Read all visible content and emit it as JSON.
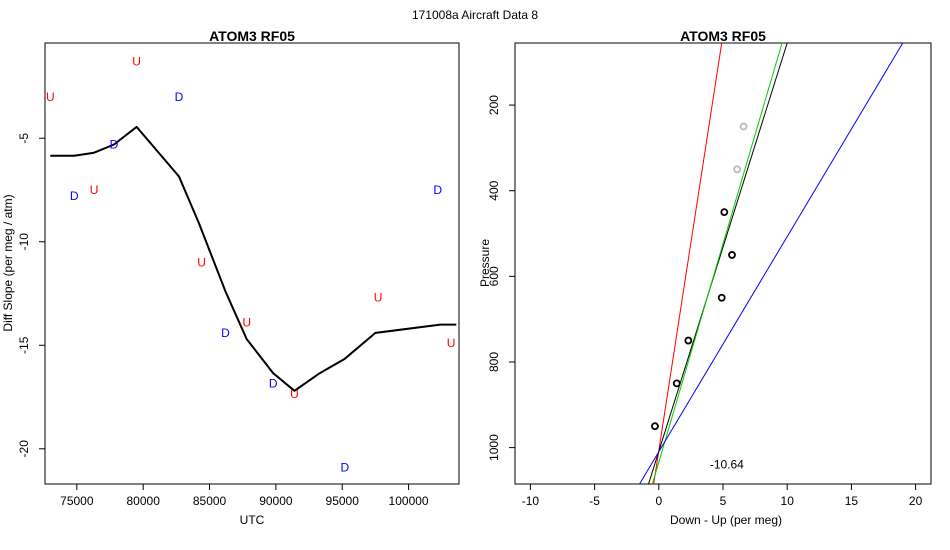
{
  "figure_title": "171008a   Aircraft Data 8",
  "chart_data": [
    {
      "type": "line",
      "title": "ATOM3 RF05",
      "xlabel": "UTC",
      "ylabel": "Diff Slope (per meg / atm)",
      "xlim": [
        72600,
        103800
      ],
      "ylim": [
        -21.7,
        -0.4
      ],
      "xticks": [
        75000,
        80000,
        85000,
        90000,
        95000,
        100000
      ],
      "xtick_labels": [
        "75000",
        "80000",
        "85000",
        "90000",
        "95000",
        "100000"
      ],
      "yticks": [
        -5,
        -10,
        -15,
        -20
      ],
      "ytick_labels": [
        "-5",
        "-10",
        "-15",
        "-20"
      ],
      "grid": false,
      "series": [
        {
          "color": "#000000",
          "x": [
            73000,
            74800,
            76300,
            77800,
            79500,
            82700,
            84200,
            86200,
            87800,
            89800,
            91400,
            93300,
            95200,
            97500,
            102400,
            103600
          ],
          "y": [
            -5.85,
            -5.85,
            -5.7,
            -5.3,
            -4.45,
            -6.85,
            -9.1,
            -12.4,
            -14.7,
            -16.35,
            -17.2,
            -16.35,
            -15.65,
            -14.4,
            -14.0,
            -14.0
          ]
        }
      ],
      "markers": [
        {
          "x": 73000,
          "y": -3.0,
          "label": "U",
          "color": "#ff0000"
        },
        {
          "x": 76300,
          "y": -7.5,
          "label": "U",
          "color": "#ff0000"
        },
        {
          "x": 79500,
          "y": -1.3,
          "label": "U",
          "color": "#ff0000"
        },
        {
          "x": 84400,
          "y": -11.0,
          "label": "U",
          "color": "#ff0000"
        },
        {
          "x": 87800,
          "y": -13.9,
          "label": "U",
          "color": "#ff0000"
        },
        {
          "x": 91400,
          "y": -17.35,
          "label": "U",
          "color": "#ff0000"
        },
        {
          "x": 97700,
          "y": -12.7,
          "label": "U",
          "color": "#ff0000"
        },
        {
          "x": 103200,
          "y": -14.9,
          "label": "U",
          "color": "#ff0000"
        },
        {
          "x": 74800,
          "y": -7.8,
          "label": "D",
          "color": "#0000ff"
        },
        {
          "x": 77800,
          "y": -5.3,
          "label": "D",
          "color": "#0000ff"
        },
        {
          "x": 82700,
          "y": -3.0,
          "label": "D",
          "color": "#0000ff"
        },
        {
          "x": 86200,
          "y": -14.4,
          "label": "D",
          "color": "#0000ff"
        },
        {
          "x": 89800,
          "y": -16.85,
          "label": "D",
          "color": "#0000ff"
        },
        {
          "x": 95200,
          "y": -20.9,
          "label": "D",
          "color": "#0000ff"
        },
        {
          "x": 102200,
          "y": -7.5,
          "label": "D",
          "color": "#0000ff"
        }
      ]
    },
    {
      "type": "scatter",
      "title": "ATOM3 RF05",
      "xlabel": "Down - Up (per meg)",
      "ylabel": "Pressure",
      "xlim": [
        -11.2,
        21.2
      ],
      "ylim": [
        1085,
        55
      ],
      "y_reversed": true,
      "xticks": [
        -10,
        -5,
        0,
        5,
        10,
        15,
        20
      ],
      "xtick_labels": [
        "-10",
        "-5",
        "0",
        "5",
        "10",
        "15",
        "20"
      ],
      "yticks": [
        200,
        400,
        600,
        800,
        1000
      ],
      "ytick_labels": [
        "200",
        "400",
        "600",
        "800",
        "1000"
      ],
      "grid": false,
      "points": [
        {
          "x": -0.3,
          "y": 950,
          "color": "#000000"
        },
        {
          "x": 1.4,
          "y": 850,
          "color": "#000000"
        },
        {
          "x": 2.3,
          "y": 750,
          "color": "#000000"
        },
        {
          "x": 4.9,
          "y": 650,
          "color": "#000000"
        },
        {
          "x": 5.7,
          "y": 550,
          "color": "#000000"
        },
        {
          "x": 5.1,
          "y": 450,
          "color": "#000000"
        },
        {
          "x": 6.1,
          "y": 350,
          "color": "#bbbbbb"
        },
        {
          "x": 6.6,
          "y": 250,
          "color": "#bbbbbb"
        }
      ],
      "fit_lines": [
        {
          "color": "#ff0000",
          "x1": -0.4,
          "y1": 1085,
          "x2": 4.9,
          "y2": 55
        },
        {
          "color": "#000000",
          "x1": -0.8,
          "y1": 1085,
          "x2": 10.0,
          "y2": 55
        },
        {
          "color": "#00cc00",
          "x1": -0.5,
          "y1": 1085,
          "x2": 9.6,
          "y2": 55
        },
        {
          "color": "#0000ff",
          "x1": -1.5,
          "y1": 1085,
          "x2": 19.0,
          "y2": 55
        }
      ],
      "annotation": {
        "text": "-10.64",
        "x": 5.3,
        "y": 1040
      }
    }
  ]
}
